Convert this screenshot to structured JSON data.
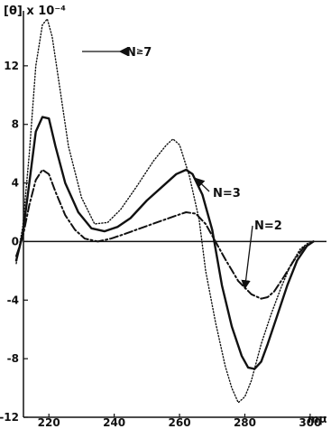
{
  "chart_data": {
    "type": "line",
    "ylabel": "[θ] x 10⁻⁴",
    "x_unit": "mμ",
    "xlim": [
      210,
      305
    ],
    "ylim": [
      -12,
      16
    ],
    "x_ticks": [
      "220",
      "240",
      "260",
      "280",
      "300"
    ],
    "y_ticks": [
      "12",
      "8",
      "4",
      "0",
      "-4",
      "-8",
      "-12"
    ],
    "zero_line": true,
    "series": [
      {
        "name": "N=7",
        "style": "dotted",
        "points": [
          [
            210,
            -1.5
          ],
          [
            212,
            1
          ],
          [
            214,
            6
          ],
          [
            216,
            12
          ],
          [
            218,
            14.8
          ],
          [
            219.5,
            15.2
          ],
          [
            221,
            14
          ],
          [
            223,
            11
          ],
          [
            226,
            6.5
          ],
          [
            230,
            3
          ],
          [
            234,
            1.2
          ],
          [
            238,
            1.3
          ],
          [
            242,
            2.2
          ],
          [
            247,
            3.8
          ],
          [
            252,
            5.5
          ],
          [
            256,
            6.6
          ],
          [
            258,
            7
          ],
          [
            260,
            6.6
          ],
          [
            263,
            4.5
          ],
          [
            266,
            1.5
          ],
          [
            268,
            -2
          ],
          [
            271,
            -5.5
          ],
          [
            274,
            -8.5
          ],
          [
            276,
            -10
          ],
          [
            278,
            -11
          ],
          [
            280,
            -10.6
          ],
          [
            282,
            -9.5
          ],
          [
            285,
            -7
          ],
          [
            288,
            -5
          ],
          [
            291,
            -3.2
          ],
          [
            294,
            -1.6
          ],
          [
            297,
            -0.5
          ],
          [
            300,
            0
          ]
        ]
      },
      {
        "name": "N=3",
        "style": "solid",
        "points": [
          [
            210,
            -1.3
          ],
          [
            212,
            0.5
          ],
          [
            214,
            4
          ],
          [
            216,
            7.5
          ],
          [
            218,
            8.5
          ],
          [
            220,
            8.4
          ],
          [
            222,
            6.5
          ],
          [
            225,
            4
          ],
          [
            229,
            2
          ],
          [
            233,
            0.9
          ],
          [
            237,
            0.7
          ],
          [
            241,
            1
          ],
          [
            245,
            1.6
          ],
          [
            250,
            2.8
          ],
          [
            255,
            3.8
          ],
          [
            259,
            4.6
          ],
          [
            262,
            4.9
          ],
          [
            264,
            4.6
          ],
          [
            267,
            3.2
          ],
          [
            270,
            0.8
          ],
          [
            273,
            -3
          ],
          [
            276,
            -5.8
          ],
          [
            279,
            -7.8
          ],
          [
            281,
            -8.6
          ],
          [
            283,
            -8.7
          ],
          [
            285,
            -8.2
          ],
          [
            287,
            -7
          ],
          [
            290,
            -5
          ],
          [
            293,
            -3
          ],
          [
            296,
            -1.3
          ],
          [
            299,
            -0.3
          ],
          [
            301,
            0
          ]
        ]
      },
      {
        "name": "N=2",
        "style": "dashdot",
        "points": [
          [
            210,
            -1
          ],
          [
            212,
            0.3
          ],
          [
            214,
            2.5
          ],
          [
            216,
            4.2
          ],
          [
            218,
            4.9
          ],
          [
            220,
            4.6
          ],
          [
            222,
            3.4
          ],
          [
            225,
            1.8
          ],
          [
            228,
            0.8
          ],
          [
            231,
            0.2
          ],
          [
            235,
            0
          ],
          [
            239,
            0.2
          ],
          [
            243,
            0.5
          ],
          [
            248,
            0.9
          ],
          [
            253,
            1.3
          ],
          [
            258,
            1.7
          ],
          [
            262,
            2
          ],
          [
            265,
            1.9
          ],
          [
            268,
            1.2
          ],
          [
            271,
            0
          ],
          [
            274,
            -1.2
          ],
          [
            278,
            -2.7
          ],
          [
            282,
            -3.6
          ],
          [
            285,
            -3.9
          ],
          [
            287,
            -3.8
          ],
          [
            289,
            -3.4
          ],
          [
            292,
            -2.4
          ],
          [
            295,
            -1.3
          ],
          [
            298,
            -0.4
          ],
          [
            301,
            0
          ]
        ]
      }
    ],
    "annotations": [
      {
        "series": "N=7",
        "label": "N=7",
        "prefix": "≥",
        "text": "N",
        "num": "7",
        "arrow_to": [
          221,
          13.2
        ]
      },
      {
        "series": "N=3",
        "label": "N=3",
        "text": "N=3",
        "arrow_to": [
          265,
          4.3
        ]
      },
      {
        "series": "N=2",
        "label": "N=2",
        "text": "N=2",
        "arrow_to": [
          280,
          -3.2
        ]
      }
    ]
  }
}
